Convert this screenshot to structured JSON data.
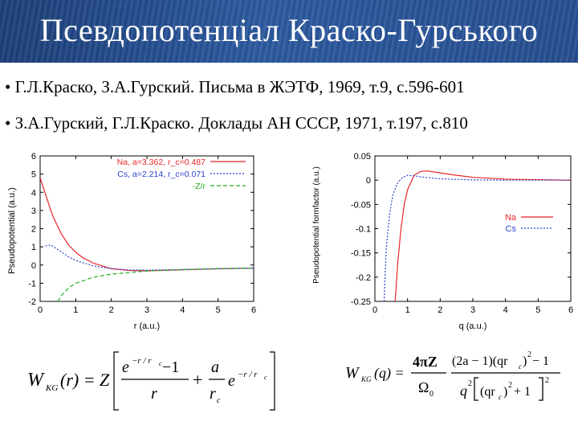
{
  "slide": {
    "title": "Псевдопотенціал Краско-Гурського",
    "references": [
      "• Г.Л.Краско, З.А.Гурский. Письма в ЖЭТФ, 1969, т.9, с.596-601",
      "• З.А.Гурский, Г.Л.Краско. Доклады АН СССР, 1971, т.197, с.810"
    ]
  },
  "chart_data": [
    {
      "type": "line",
      "xlabel": "r (a.u.)",
      "ylabel": "Pseudopotential (a.u.)",
      "xlim": [
        0,
        6
      ],
      "ylim": [
        -2,
        6
      ],
      "xticks": [
        "0",
        "1",
        "2",
        "3",
        "4",
        "5",
        "6"
      ],
      "yticks": [
        "-2",
        "-1",
        "0",
        "1",
        "2",
        "3",
        "4",
        "5",
        "6"
      ],
      "legend_position": "top-right",
      "series": [
        {
          "name": "Na, a=3.362, r_c=0.487",
          "color": "#e8252a",
          "dash": "solid",
          "x": [
            0,
            0.1,
            0.2,
            0.3,
            0.4,
            0.6,
            0.8,
            1.0,
            1.2,
            1.5,
            2.0,
            2.5,
            3.0,
            4.0,
            5.0,
            6.0
          ],
          "y": [
            4.8,
            4.2,
            3.6,
            3.0,
            2.5,
            1.7,
            1.1,
            0.7,
            0.4,
            0.1,
            -0.2,
            -0.3,
            -0.32,
            -0.26,
            -0.21,
            -0.17
          ]
        },
        {
          "name": "Cs, a=2.214, r_c=0.071",
          "color": "#2a3fd0",
          "dash": "dotted",
          "x": [
            0.15,
            0.3,
            0.5,
            0.8,
            1.0,
            1.5,
            2.0,
            2.5,
            3.0,
            4.0,
            5.0,
            6.0
          ],
          "y": [
            1.05,
            1.1,
            0.85,
            0.45,
            0.25,
            -0.05,
            -0.2,
            -0.27,
            -0.28,
            -0.25,
            -0.2,
            -0.17
          ]
        },
        {
          "name": "-Z/r",
          "color": "#22b022",
          "dash": "dashed",
          "x": [
            0.5,
            0.6,
            0.8,
            1.0,
            1.5,
            2.0,
            3.0,
            4.0,
            5.0,
            6.0
          ],
          "y": [
            -2.0,
            -1.67,
            -1.25,
            -1.0,
            -0.67,
            -0.5,
            -0.33,
            -0.25,
            -0.2,
            -0.17
          ]
        }
      ]
    },
    {
      "type": "line",
      "xlabel": "q (a.u.)",
      "ylabel": "Pseudopotential formfactor (a.u.)",
      "xlim": [
        0,
        6
      ],
      "ylim": [
        -0.25,
        0.05
      ],
      "xticks": [
        "0",
        "1",
        "2",
        "3",
        "4",
        "5",
        "6"
      ],
      "yticks": [
        "0.05",
        "0",
        "-0.05",
        "-0.1",
        "-0.15",
        "-0.2",
        "-0.25"
      ],
      "legend_position": "center-right",
      "series": [
        {
          "name": "Na",
          "color": "#e8252a",
          "dash": "solid",
          "x": [
            0.62,
            0.7,
            0.8,
            0.9,
            1.0,
            1.2,
            1.4,
            1.6,
            2.0,
            2.5,
            3.0,
            4.0,
            5.0,
            6.0
          ],
          "y": [
            -0.25,
            -0.17,
            -0.1,
            -0.05,
            -0.02,
            0.01,
            0.018,
            0.019,
            0.015,
            0.01,
            0.006,
            0.002,
            0.001,
            0.0
          ]
        },
        {
          "name": "Cs",
          "color": "#2a3fd0",
          "dash": "dotted",
          "x": [
            0.28,
            0.35,
            0.45,
            0.55,
            0.7,
            0.85,
            1.0,
            1.2,
            1.5,
            2.0,
            2.5,
            3.0,
            4.0,
            5.0,
            6.0
          ],
          "y": [
            -0.25,
            -0.14,
            -0.07,
            -0.03,
            -0.005,
            0.006,
            0.01,
            0.009,
            0.006,
            0.003,
            0.0015,
            0.0005,
            0.0,
            0.0,
            0.0
          ]
        }
      ]
    }
  ],
  "formulas": {
    "left": {
      "lhs_W": "W",
      "lhs_sub": "KG",
      "lhs_arg": "(r) = Z",
      "num1": "e",
      "num1_sup": "−r / r",
      "num1_sup_sub": "c",
      "num1_tail": " −1",
      "den1": "r",
      "plus": "+",
      "num2": "a",
      "den2": "r",
      "den2_sub": "c",
      "tail_e": "e",
      "tail_sup": "−r / r",
      "tail_sup_sub": "c"
    },
    "right": {
      "lhs_W": "W",
      "lhs_sub": "KG",
      "lhs_arg": "(q) =",
      "frac1_num": "4πZ",
      "frac1_den": "Ω",
      "frac1_den_sub": "0",
      "frac2_num": "(2a − 1)(qr",
      "frac2_num_sub": "c",
      "frac2_num_tail": ")",
      "frac2_num_sup": "2",
      "frac2_num_end": " − 1",
      "frac2_den_q": "q",
      "frac2_den_sup": "2",
      "frac2_den_inner": "(qr",
      "frac2_den_inner_sub": "c",
      "frac2_den_inner_tail": ")",
      "frac2_den_inner_sup": "2",
      "frac2_den_plus": " + 1",
      "frac2_den_outer_sup": "2"
    }
  }
}
